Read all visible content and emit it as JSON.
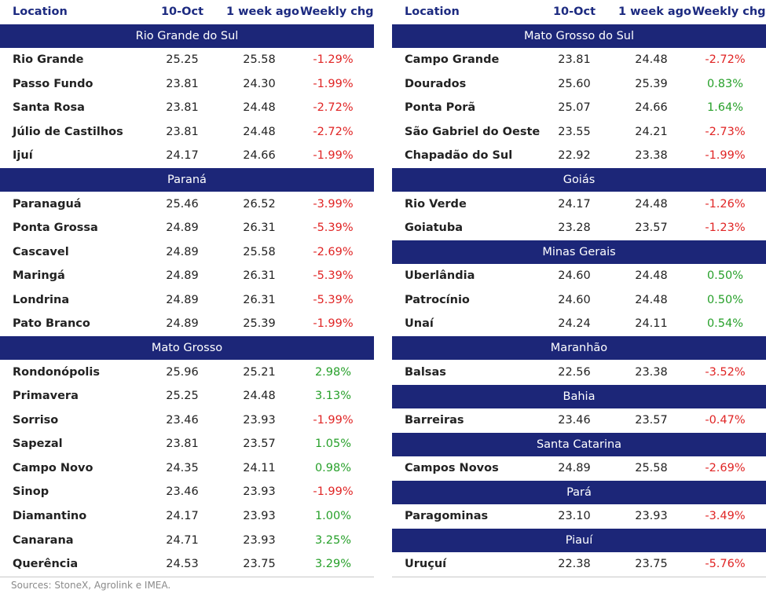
{
  "left_table": {
    "columns": [
      "Location",
      "10-Oct",
      "1 week ago",
      "Weekly chg"
    ],
    "sections": [
      {
        "title": "Rio Grande do Sul",
        "rows": [
          [
            "Rio Grande",
            "25.25",
            "25.58",
            "-1.29%"
          ],
          [
            "Passo Fundo",
            "23.81",
            "24.30",
            "-1.99%"
          ],
          [
            "Santa Rosa",
            "23.81",
            "24.48",
            "-2.72%"
          ],
          [
            "Júlio de Castilhos",
            "23.81",
            "24.48",
            "-2.72%"
          ],
          [
            "Ijuí",
            "24.17",
            "24.66",
            "-1.99%"
          ]
        ]
      },
      {
        "title": "Paraná",
        "rows": [
          [
            "Paranaguá",
            "25.46",
            "26.52",
            "-3.99%"
          ],
          [
            "Ponta Grossa",
            "24.89",
            "26.31",
            "-5.39%"
          ],
          [
            "Cascavel",
            "24.89",
            "25.58",
            "-2.69%"
          ],
          [
            "Maringá",
            "24.89",
            "26.31",
            "-5.39%"
          ],
          [
            "Londrina",
            "24.89",
            "26.31",
            "-5.39%"
          ],
          [
            "Pato Branco",
            "24.89",
            "25.39",
            "-1.99%"
          ]
        ]
      },
      {
        "title": "Mato Grosso",
        "rows": [
          [
            "Rondonópolis",
            "25.96",
            "25.21",
            "2.98%"
          ],
          [
            "Primavera",
            "25.25",
            "24.48",
            "3.13%"
          ],
          [
            "Sorriso",
            "23.46",
            "23.93",
            "-1.99%"
          ],
          [
            "Sapezal",
            "23.81",
            "23.57",
            "1.05%"
          ],
          [
            "Campo Novo",
            "24.35",
            "24.11",
            "0.98%"
          ],
          [
            "Sinop",
            "23.46",
            "23.93",
            "-1.99%"
          ],
          [
            "Diamantino",
            "24.17",
            "23.93",
            "1.00%"
          ],
          [
            "Canarana",
            "24.71",
            "23.93",
            "3.25%"
          ],
          [
            "Querência",
            "24.53",
            "23.75",
            "3.29%"
          ]
        ]
      }
    ]
  },
  "right_table": {
    "columns": [
      "Location",
      "10-Oct",
      "1 week ago",
      "Weekly chg"
    ],
    "sections": [
      {
        "title": "Mato Grosso do Sul",
        "rows": [
          [
            "Campo Grande",
            "23.81",
            "24.48",
            "-2.72%"
          ],
          [
            "Dourados",
            "25.60",
            "25.39",
            "0.83%"
          ],
          [
            "Ponta Porã",
            "25.07",
            "24.66",
            "1.64%"
          ],
          [
            "São Gabriel do Oeste",
            "23.55",
            "24.21",
            "-2.73%"
          ],
          [
            "Chapadão do Sul",
            "22.92",
            "23.38",
            "-1.99%"
          ]
        ]
      },
      {
        "title": "Goiás",
        "rows": [
          [
            "Rio Verde",
            "24.17",
            "24.48",
            "-1.26%"
          ],
          [
            "Goiatuba",
            "23.28",
            "23.57",
            "-1.23%"
          ]
        ]
      },
      {
        "title": "Minas Gerais",
        "rows": [
          [
            "Uberlândia",
            "24.60",
            "24.48",
            "0.50%"
          ],
          [
            "Patrocínio",
            "24.60",
            "24.48",
            "0.50%"
          ],
          [
            "Unaí",
            "24.24",
            "24.11",
            "0.54%"
          ]
        ]
      },
      {
        "title": "Maranhão",
        "rows": [
          [
            "Balsas",
            "22.56",
            "23.38",
            "-3.52%"
          ]
        ]
      },
      {
        "title": "Bahia",
        "rows": [
          [
            "Barreiras",
            "23.46",
            "23.57",
            "-0.47%"
          ]
        ]
      },
      {
        "title": "Santa Catarina",
        "rows": [
          [
            "Campos Novos",
            "24.89",
            "25.58",
            "-2.69%"
          ]
        ]
      },
      {
        "title": "Pará",
        "rows": [
          [
            "Paragominas",
            "23.10",
            "23.93",
            "-3.49%"
          ]
        ]
      },
      {
        "title": "Piauí",
        "rows": [
          [
            "Uruçuí",
            "22.38",
            "23.75",
            "-5.76%"
          ]
        ]
      }
    ]
  },
  "footer": "Sources: StoneX, Agrolink e IMEA."
}
